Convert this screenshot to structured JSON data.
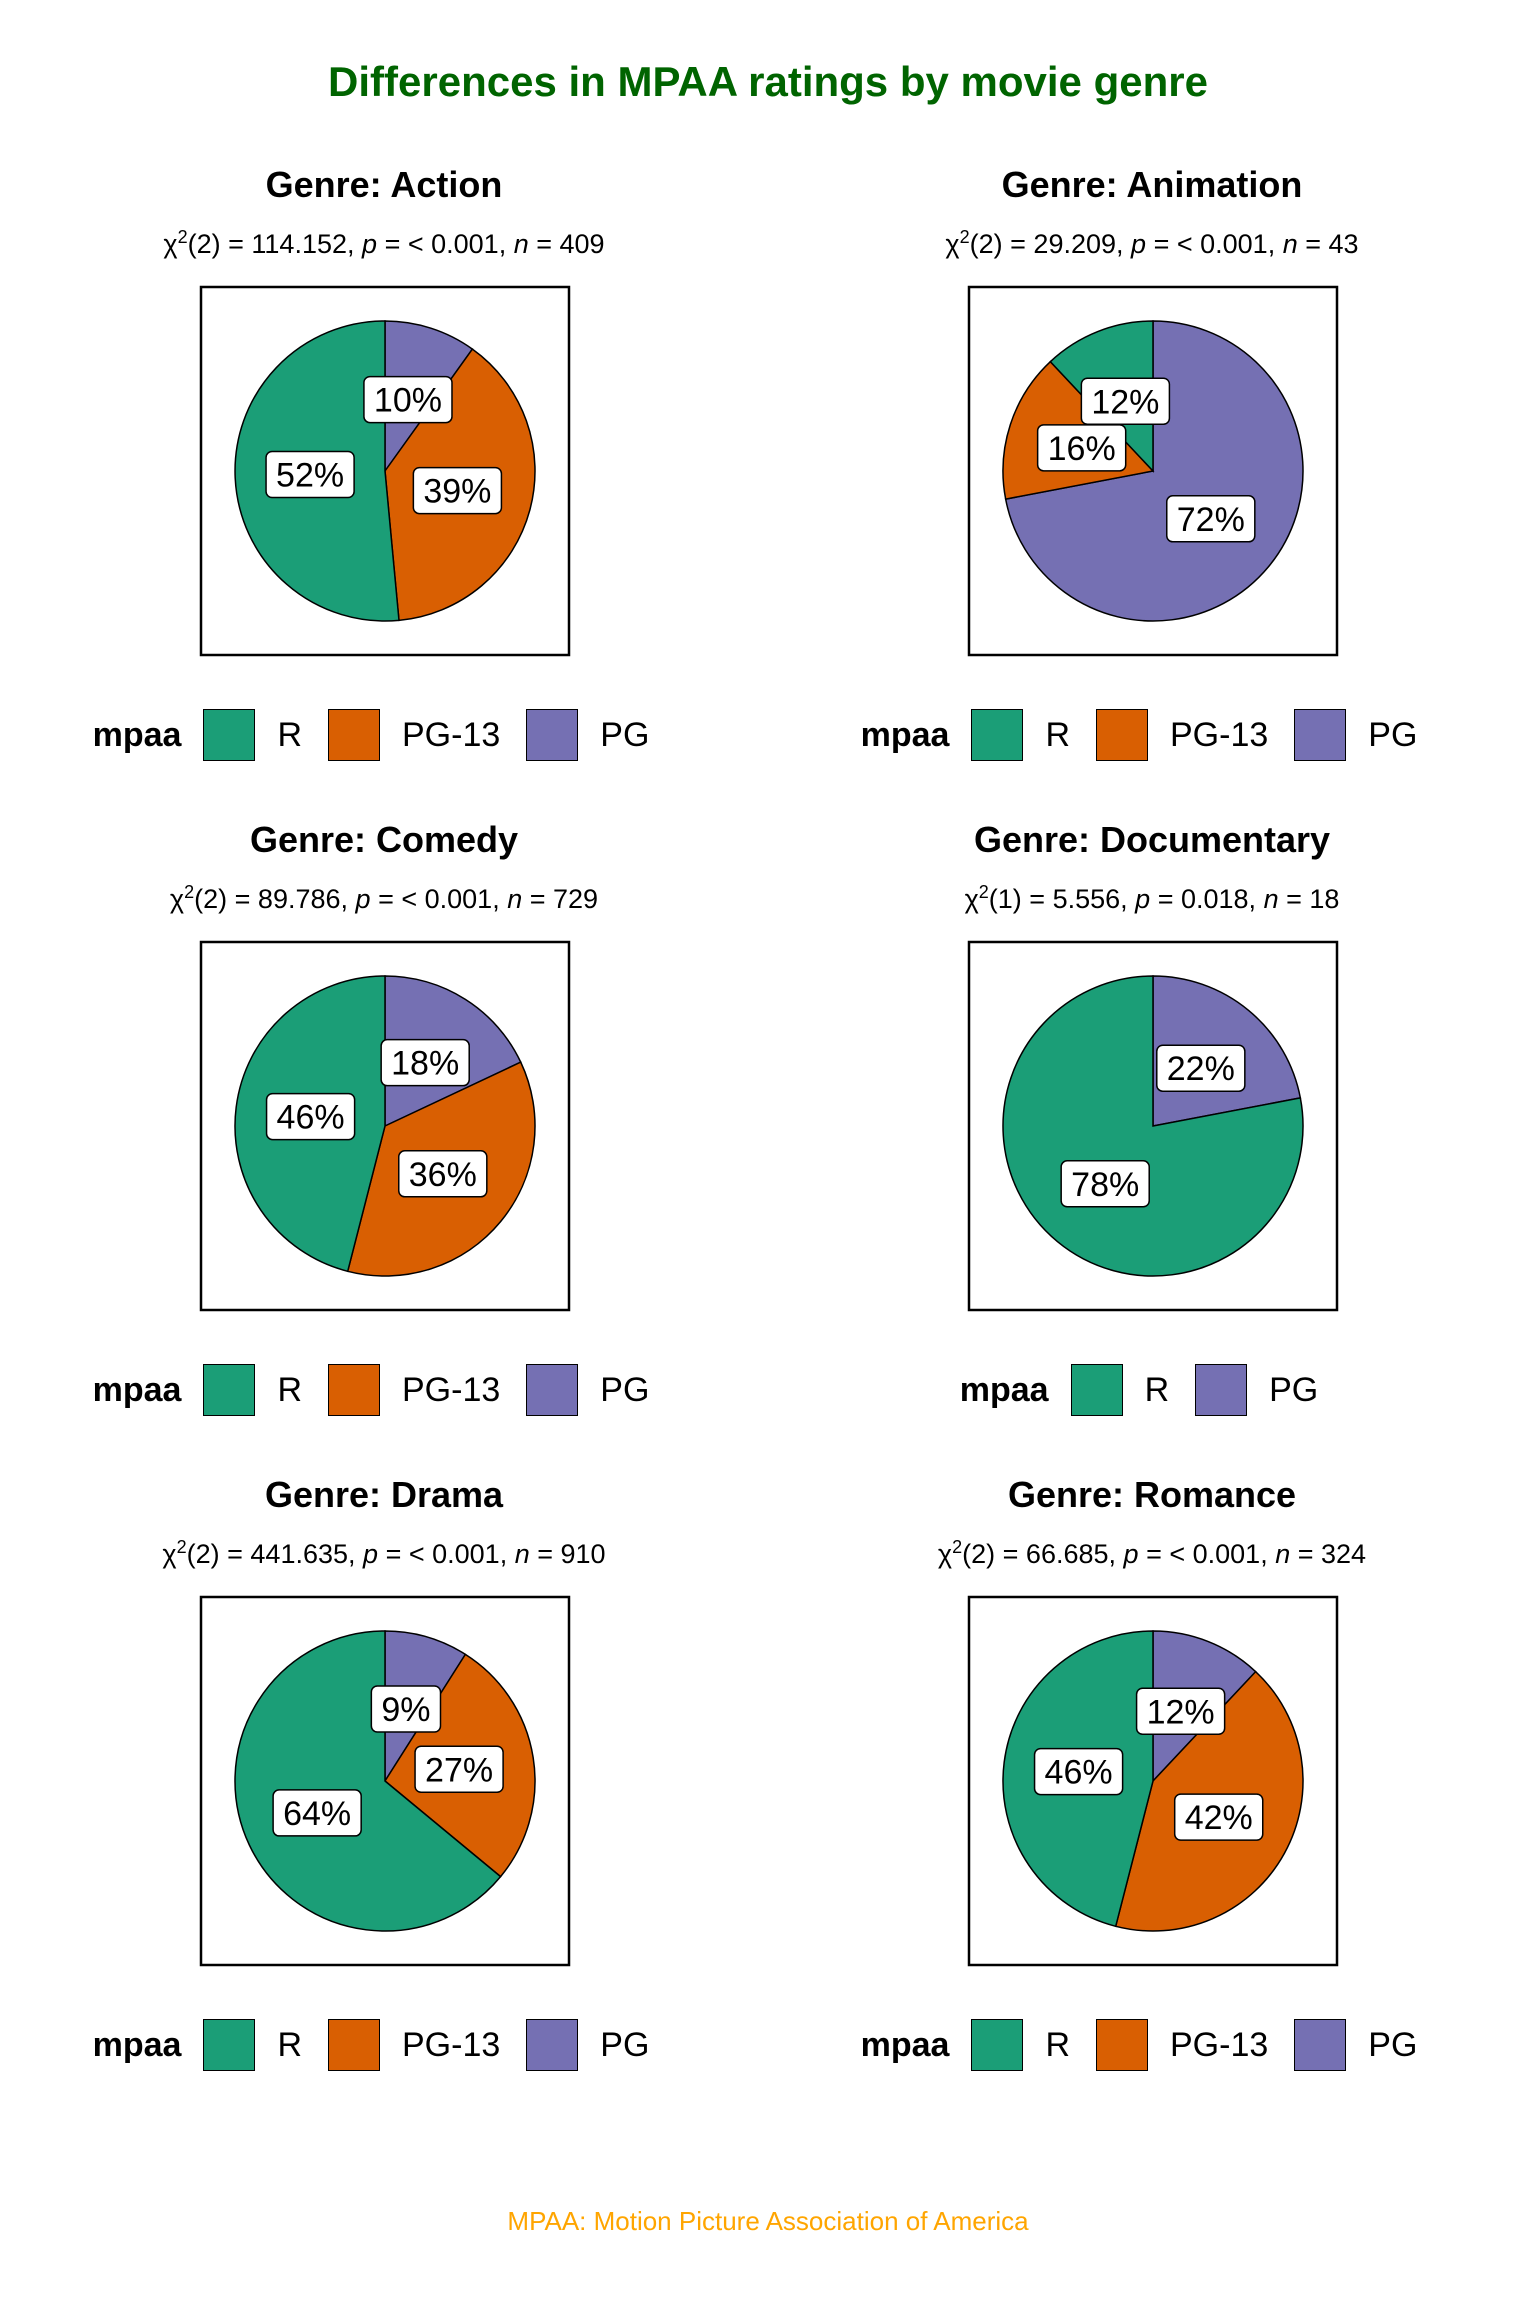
{
  "title": "Differences in MPAA ratings by movie genre",
  "caption": "MPAA: Motion Picture Association of America",
  "legend_title": "mpaa",
  "colors": {
    "R": "#1B9E77",
    "PG-13": "#D95F02",
    "PG": "#7570B3"
  },
  "chart_data": [
    {
      "type": "pie",
      "title": "Genre: Action",
      "stat": {
        "df": "2",
        "chi": "114.152",
        "p": "< 0.001",
        "n": "409"
      },
      "slices": [
        {
          "label": "R",
          "value": 52
        },
        {
          "label": "PG-13",
          "value": 39
        },
        {
          "label": "PG",
          "value": 10
        }
      ],
      "legend": [
        "R",
        "PG-13",
        "PG"
      ]
    },
    {
      "type": "pie",
      "title": "Genre: Animation",
      "stat": {
        "df": "2",
        "chi": "29.209",
        "p": "< 0.001",
        "n": "43"
      },
      "slices": [
        {
          "label": "R",
          "value": 12
        },
        {
          "label": "PG-13",
          "value": 16
        },
        {
          "label": "PG",
          "value": 72
        }
      ],
      "legend": [
        "R",
        "PG-13",
        "PG"
      ]
    },
    {
      "type": "pie",
      "title": "Genre: Comedy",
      "stat": {
        "df": "2",
        "chi": "89.786",
        "p": "< 0.001",
        "n": "729"
      },
      "slices": [
        {
          "label": "R",
          "value": 46
        },
        {
          "label": "PG-13",
          "value": 36
        },
        {
          "label": "PG",
          "value": 18
        }
      ],
      "legend": [
        "R",
        "PG-13",
        "PG"
      ]
    },
    {
      "type": "pie",
      "title": "Genre: Documentary",
      "stat": {
        "df": "1",
        "chi": "5.556",
        "p": "0.018",
        "n": "18"
      },
      "slices": [
        {
          "label": "R",
          "value": 78
        },
        {
          "label": "PG",
          "value": 22
        }
      ],
      "legend": [
        "R",
        "PG"
      ]
    },
    {
      "type": "pie",
      "title": "Genre: Drama",
      "stat": {
        "df": "2",
        "chi": "441.635",
        "p": "< 0.001",
        "n": "910"
      },
      "slices": [
        {
          "label": "R",
          "value": 64
        },
        {
          "label": "PG-13",
          "value": 27
        },
        {
          "label": "PG",
          "value": 9
        }
      ],
      "legend": [
        "R",
        "PG-13",
        "PG"
      ]
    },
    {
      "type": "pie",
      "title": "Genre: Romance",
      "stat": {
        "df": "2",
        "chi": "66.685",
        "p": "< 0.001",
        "n": "324"
      },
      "slices": [
        {
          "label": "R",
          "value": 46
        },
        {
          "label": "PG-13",
          "value": 42
        },
        {
          "label": "PG",
          "value": 12
        }
      ],
      "legend": [
        "R",
        "PG-13",
        "PG"
      ]
    }
  ]
}
